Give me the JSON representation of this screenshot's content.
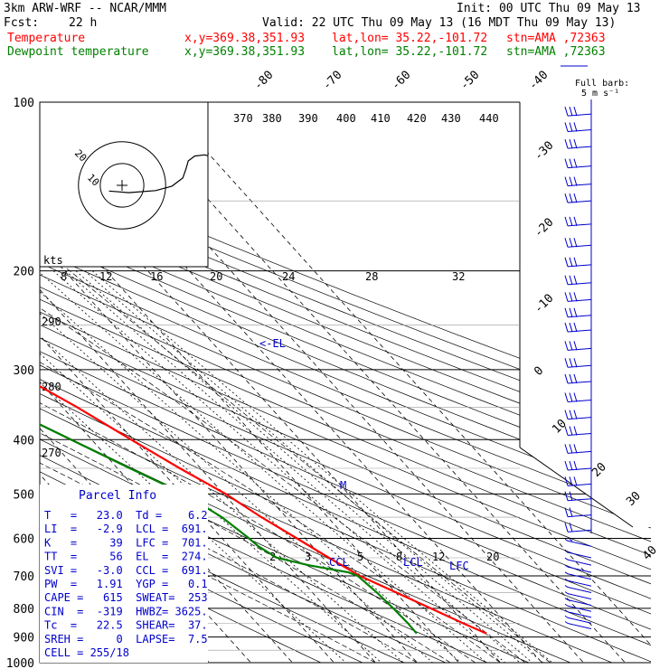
{
  "header": {
    "model": "3km ARW-WRF -- NCAR/MMM",
    "init": "Init: 00 UTC Thu 09 May 13",
    "fcst_label": "Fcst:",
    "fcst_value": "22 h",
    "valid": "Valid: 22 UTC Thu 09 May 13 (16 MDT Thu 09 May 13)",
    "temp_label": "Temperature",
    "dew_label": "Dewpoint temperature",
    "xy": "x,y=369.38,351.93",
    "latlon": "lat,lon= 35.22,-101.72",
    "stn": "stn=AMA ,72363"
  },
  "colors": {
    "temperature": "#ff0000",
    "dewpoint": "#008000",
    "text": "#000000",
    "wind": "#0000cc",
    "grid": "#000000",
    "hodo": "#000000"
  },
  "full_barb": {
    "line1": "Full barb:",
    "line2": "5 m s⁻¹"
  },
  "hodograph": {
    "unit": "kts",
    "ring_labels": [
      "10",
      "20"
    ]
  },
  "annotations": {
    "el": "<-EL",
    "ccl": "CCL",
    "lcl": "LCL",
    "lfc": "LFC",
    "m": "M"
  },
  "parcel_info": {
    "title": "Parcel Info",
    "rows": [
      "T   =   23.0  Td =    6.2",
      "LI  =   -2.9  LCL =  691.",
      "K   =     39  LFC =  701.",
      "TT  =     56  EL  =  274.",
      "SVI =   -3.0  CCL =  691.",
      "PW  =   1.91  YGP =   0.1",
      "CAPE =   615  SWEAT=  253",
      "CIN  =  -319  HWBZ= 3625.",
      "Tc  =   22.5  SHEAR=  37.",
      "SREH =     0  LAPSE=  7.5",
      "CELL = 255/18"
    ]
  },
  "chart_data": {
    "type": "line",
    "title": "",
    "y_axis": {
      "label": "",
      "scale": "log",
      "direction": "decreasing-up",
      "ticks": [
        100,
        200,
        300,
        400,
        500,
        600,
        700,
        800,
        900,
        1000
      ],
      "range": [
        100,
        1000
      ]
    },
    "isotherm_labels": [
      "-80",
      "-70",
      "-60",
      "-50",
      "-40",
      "-30",
      "-20",
      "-10",
      "0",
      "10",
      "20",
      "30",
      "40"
    ],
    "theta_labels": [
      "370",
      "380",
      "390",
      "400",
      "410",
      "420",
      "430",
      "440",
      "290",
      "280",
      "270"
    ],
    "mixing_ratio_labels_upper": [
      "8",
      "12",
      "16",
      "20",
      "24",
      "28",
      "32"
    ],
    "mixing_ratio_labels_lower": [
      "2",
      "3",
      "5",
      "8",
      "12",
      "20"
    ],
    "series": [
      {
        "name": "Temperature",
        "points": [
          [
            887,
            23.0
          ],
          [
            850,
            19.5
          ],
          [
            800,
            15.0
          ],
          [
            750,
            10.2
          ],
          [
            700,
            5.0
          ],
          [
            650,
            1.5
          ],
          [
            600,
            -2.0
          ],
          [
            550,
            -6.0
          ],
          [
            500,
            -9.5
          ],
          [
            450,
            -15.0
          ],
          [
            400,
            -20.5
          ],
          [
            350,
            -26.5
          ],
          [
            300,
            -34.5
          ],
          [
            275,
            -39.5
          ],
          [
            250,
            -45.5
          ],
          [
            225,
            -51.5
          ],
          [
            200,
            -56.0
          ],
          [
            175,
            -58.0
          ],
          [
            150,
            -60.0
          ],
          [
            125,
            -61.0
          ],
          [
            110,
            -61.5
          ],
          [
            100,
            -62.5
          ]
        ]
      },
      {
        "name": "Dewpoint temperature",
        "points": [
          [
            887,
            6.2
          ],
          [
            850,
            6.3
          ],
          [
            800,
            6.0
          ],
          [
            750,
            5.5
          ],
          [
            700,
            4.5
          ],
          [
            690,
            3.0
          ],
          [
            670,
            -5.0
          ],
          [
            650,
            -11.0
          ],
          [
            620,
            -13.0
          ],
          [
            600,
            -13.5
          ],
          [
            550,
            -15.5
          ],
          [
            500,
            -19.5
          ],
          [
            450,
            -27.0
          ],
          [
            400,
            -35.0
          ],
          [
            350,
            -44.0
          ],
          [
            300,
            -51.0
          ],
          [
            280,
            -56.0
          ],
          [
            250,
            -59.5
          ],
          [
            200,
            -64.0
          ],
          [
            175,
            -67.5
          ],
          [
            150,
            -70.5
          ],
          [
            125,
            -73.5
          ],
          [
            110,
            -76.0
          ],
          [
            100,
            -78.0
          ]
        ]
      }
    ],
    "wind_barbs": {
      "unit": "m s⁻¹",
      "pressures": [
        105,
        112,
        120,
        130,
        140,
        150,
        165,
        180,
        195,
        210,
        225,
        240,
        255,
        275,
        295,
        315,
        340,
        365,
        390,
        420,
        450,
        480,
        510,
        545,
        580,
        620,
        650,
        670,
        690,
        710,
        730,
        750,
        770,
        790,
        810,
        830,
        850,
        870
      ]
    },
    "hodograph_path_kts": [
      [
        -1.2,
        -1.4
      ],
      [
        0.6,
        -1.8
      ],
      [
        3.1,
        -1.3
      ],
      [
        4.6,
        -0.2
      ],
      [
        5.6,
        1.8
      ],
      [
        5.9,
        4.1
      ],
      [
        6.1,
        6.0
      ],
      [
        6.7,
        7.2
      ],
      [
        7.6,
        7.5
      ],
      [
        8.2,
        7.1
      ],
      [
        8.8,
        6.9
      ]
    ]
  }
}
